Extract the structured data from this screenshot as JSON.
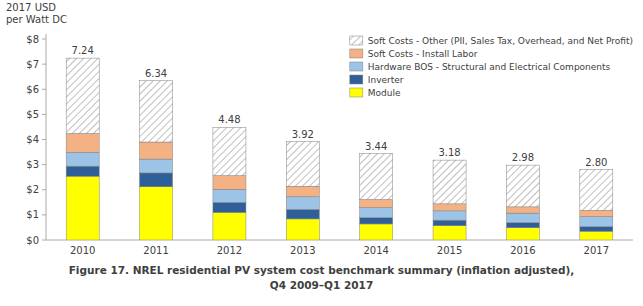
{
  "chart_data": {
    "type": "bar",
    "stacked": true,
    "title": [
      "Figure 17. NREL residential PV system cost benchmark summary (inflation adjusted),",
      "Q4 2009–Q1 2017"
    ],
    "y_label": [
      "2017 USD",
      "per Watt DC"
    ],
    "categories": [
      "2010",
      "2011",
      "2012",
      "2013",
      "2014",
      "2015",
      "2016",
      "2017"
    ],
    "series": [
      {
        "name": "Module",
        "color": "#ffff00",
        "values": [
          2.54,
          2.12,
          1.1,
          0.84,
          0.64,
          0.57,
          0.49,
          0.35
        ]
      },
      {
        "name": "Inverter",
        "color": "#2e5f99",
        "values": [
          0.4,
          0.55,
          0.4,
          0.38,
          0.25,
          0.22,
          0.2,
          0.18
        ]
      },
      {
        "name": "Hardware BOS - Structural and Electrical Components",
        "color": "#9dc3e6",
        "values": [
          0.55,
          0.55,
          0.52,
          0.5,
          0.4,
          0.37,
          0.38,
          0.4
        ]
      },
      {
        "name": "Soft Costs - Install Labor",
        "color": "#f4b183",
        "values": [
          0.75,
          0.68,
          0.54,
          0.42,
          0.32,
          0.28,
          0.25,
          0.25
        ]
      },
      {
        "name": "Soft Costs - Other (PII, Sales Tax, Overhead, and Net Profit)",
        "color": "#ffffff",
        "values": [
          3.0,
          2.44,
          1.92,
          1.78,
          1.83,
          1.74,
          1.66,
          1.62
        ]
      }
    ],
    "totals": [
      7.24,
      6.34,
      4.48,
      3.92,
      3.44,
      3.18,
      2.98,
      2.8
    ],
    "total_labels": [
      "7.24",
      "6.34",
      "4.48",
      "3.92",
      "3.44",
      "3.18",
      "2.98",
      "2.80"
    ],
    "ylim": [
      0,
      8.2
    ],
    "yticks": [
      {
        "value": 0,
        "label": "$0"
      },
      {
        "value": 1,
        "label": "$1"
      },
      {
        "value": 2,
        "label": "$2"
      },
      {
        "value": 3,
        "label": "$3"
      },
      {
        "value": 4,
        "label": "$4"
      },
      {
        "value": 5,
        "label": "$5"
      },
      {
        "value": 6,
        "label": "$6"
      },
      {
        "value": 7,
        "label": "$7"
      },
      {
        "value": 8,
        "label": "$8"
      }
    ],
    "grid": false,
    "legend": "upper right"
  }
}
